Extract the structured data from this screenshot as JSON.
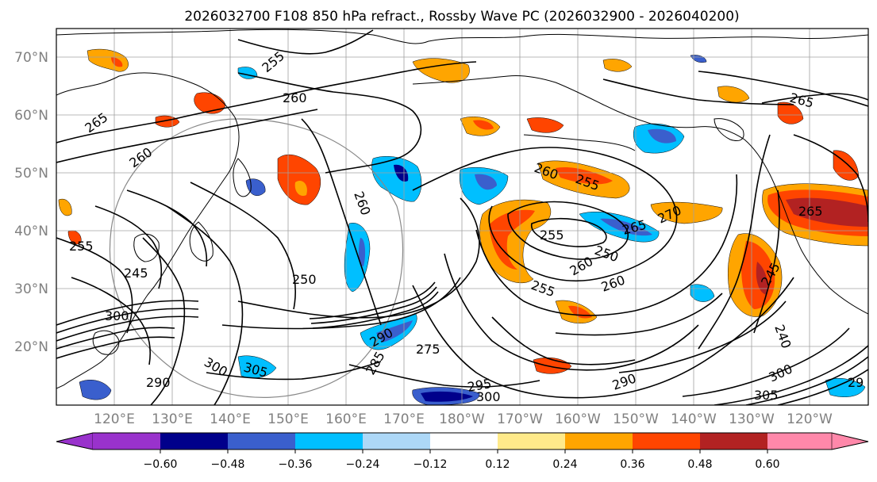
{
  "title": "2026032700 F108 850 hPa refract., Rossby Wave PC (2026032900 - 2026040200)",
  "map": {
    "lat_labels": [
      "70°N",
      "60°N",
      "50°N",
      "40°N",
      "30°N",
      "20°N"
    ],
    "lon_labels": [
      "120°E",
      "130°E",
      "140°E",
      "150°E",
      "160°E",
      "170°E",
      "180°W",
      "170°W",
      "160°W",
      "150°W",
      "140°W",
      "130°W",
      "120°W"
    ],
    "axis_label_color": "#808080",
    "contour_color": "#000000",
    "gridline_color": "#a0a0a0",
    "coastline_color": "#000000"
  },
  "contour_labels": [
    "255",
    "260",
    "265",
    "260",
    "265",
    "260",
    "260",
    "255",
    "255",
    "265",
    "270",
    "255",
    "250",
    "260",
    "260",
    "255",
    "250",
    "245",
    "300",
    "290",
    "305",
    "300",
    "290",
    "275",
    "285",
    "295",
    "300",
    "265",
    "245",
    "240",
    "290",
    "300",
    "305",
    "29"
  ],
  "colorbar": {
    "colors": [
      "#9932cc",
      "#00008b",
      "#3a5fcd",
      "#00bfff",
      "#add8f7",
      "#ffffff",
      "#ffea8a",
      "#ffa500",
      "#ff4500",
      "#b22222",
      "#ff88aa"
    ],
    "tick_labels": [
      "−0.60",
      "−0.48",
      "−0.36",
      "−0.24",
      "−0.12",
      "0.12",
      "0.24",
      "0.36",
      "0.48",
      "0.60"
    ]
  }
}
